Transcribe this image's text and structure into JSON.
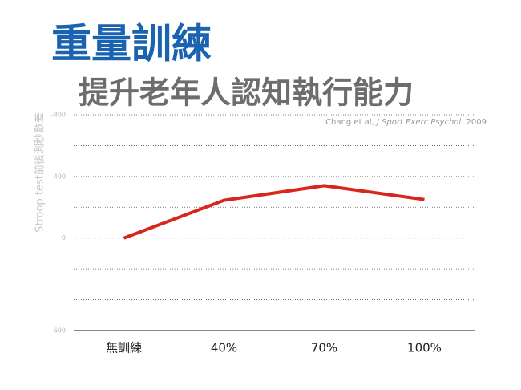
{
  "chart_data": {
    "type": "line",
    "title": "重量訓練",
    "subtitle": "提升老年人認知執行能力",
    "citation": {
      "authors": "Chang et al,",
      "journal": "J Sport Exerc Psychol.",
      "year": "2009"
    },
    "y_label": "Stroop test前後測秒數差",
    "categories": [
      "無訓練",
      "40%",
      "70%",
      "100%"
    ],
    "series": [
      {
        "color": "#d8261c",
        "values": [
          0,
          -245,
          -340,
          -250
        ]
      }
    ],
    "ylim": [
      600,
      -800
    ],
    "yticks": [
      -800,
      -400,
      0,
      600
    ],
    "minor_gridlines": [
      -600,
      -200,
      200,
      400
    ],
    "grid": true
  }
}
